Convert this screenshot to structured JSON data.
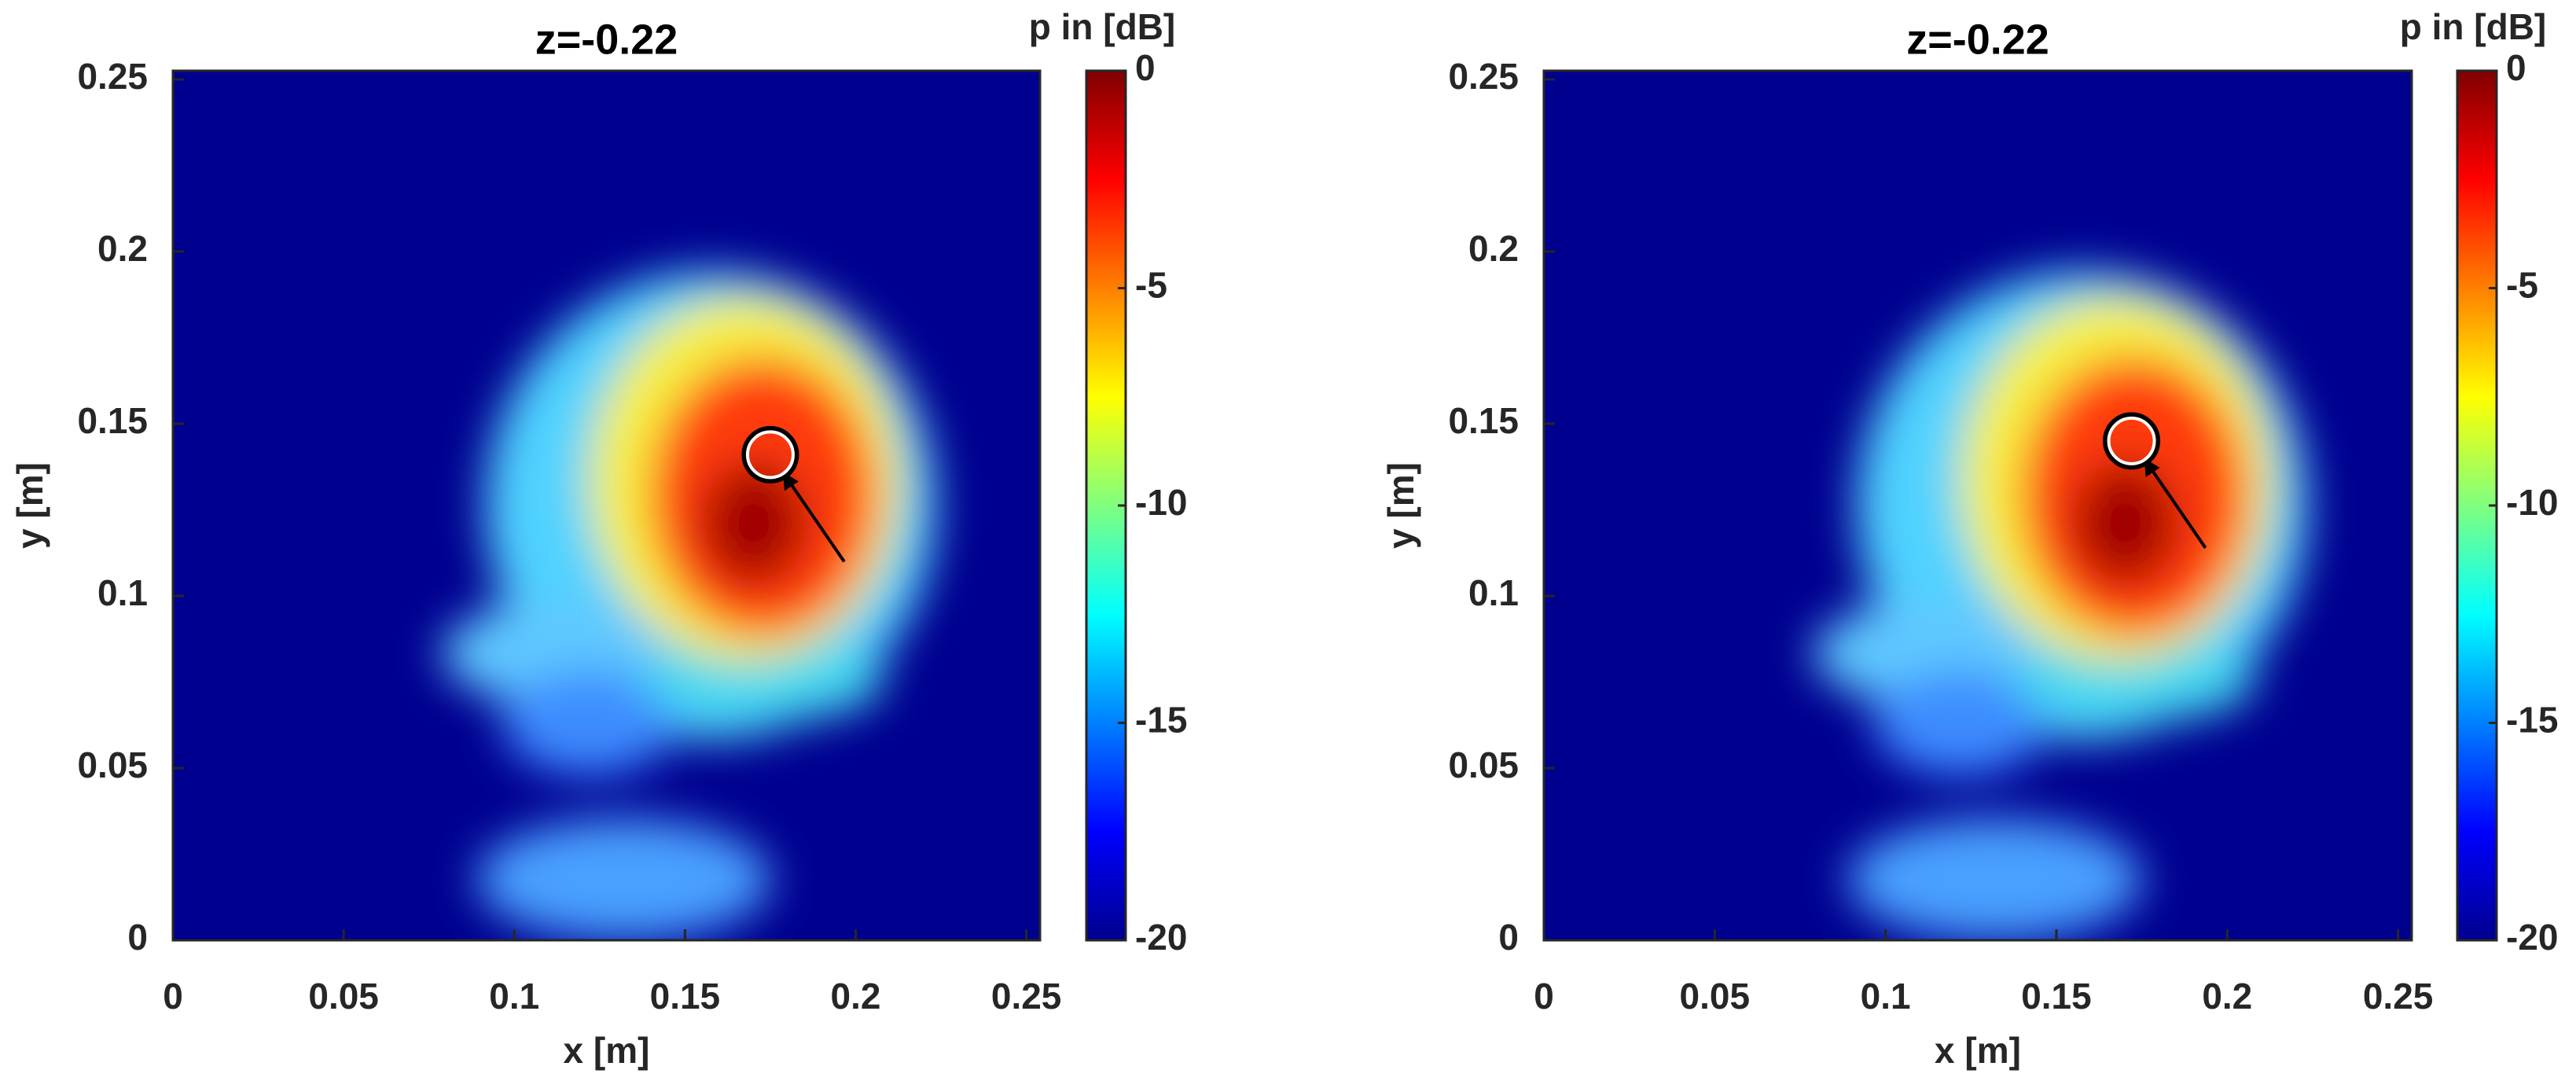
{
  "chart_data": [
    {
      "type": "heatmap",
      "title": "z=-0.22",
      "xlabel": "x [m]",
      "ylabel": "y [m]",
      "xlim": [
        0,
        0.254
      ],
      "ylim": [
        0,
        0.2525
      ],
      "xticks": [
        0,
        0.05,
        0.1,
        0.15,
        0.2,
        0.25
      ],
      "yticks": [
        0,
        0.05,
        0.1,
        0.15,
        0.2,
        0.25
      ],
      "colormap": "jet",
      "colorbar": {
        "label": "p in [dB]",
        "lim": [
          -20,
          0
        ],
        "ticks": [
          0,
          -5,
          -10,
          -15,
          -20
        ]
      },
      "marker": {
        "x": 0.175,
        "y": 0.141
      }
    },
    {
      "type": "heatmap",
      "title": "z=-0.22",
      "xlabel": "x [m]",
      "ylabel": "y [m]",
      "xlim": [
        0,
        0.254
      ],
      "ylim": [
        0,
        0.2525
      ],
      "xticks": [
        0,
        0.05,
        0.1,
        0.15,
        0.2,
        0.25
      ],
      "yticks": [
        0,
        0.05,
        0.1,
        0.15,
        0.2,
        0.25
      ],
      "colormap": "jet",
      "colorbar": {
        "label": "p in [dB]",
        "lim": [
          -20,
          0
        ],
        "ticks": [
          0,
          -5,
          -10,
          -15,
          -20
        ]
      },
      "marker": {
        "x": 0.172,
        "y": 0.145
      }
    }
  ]
}
